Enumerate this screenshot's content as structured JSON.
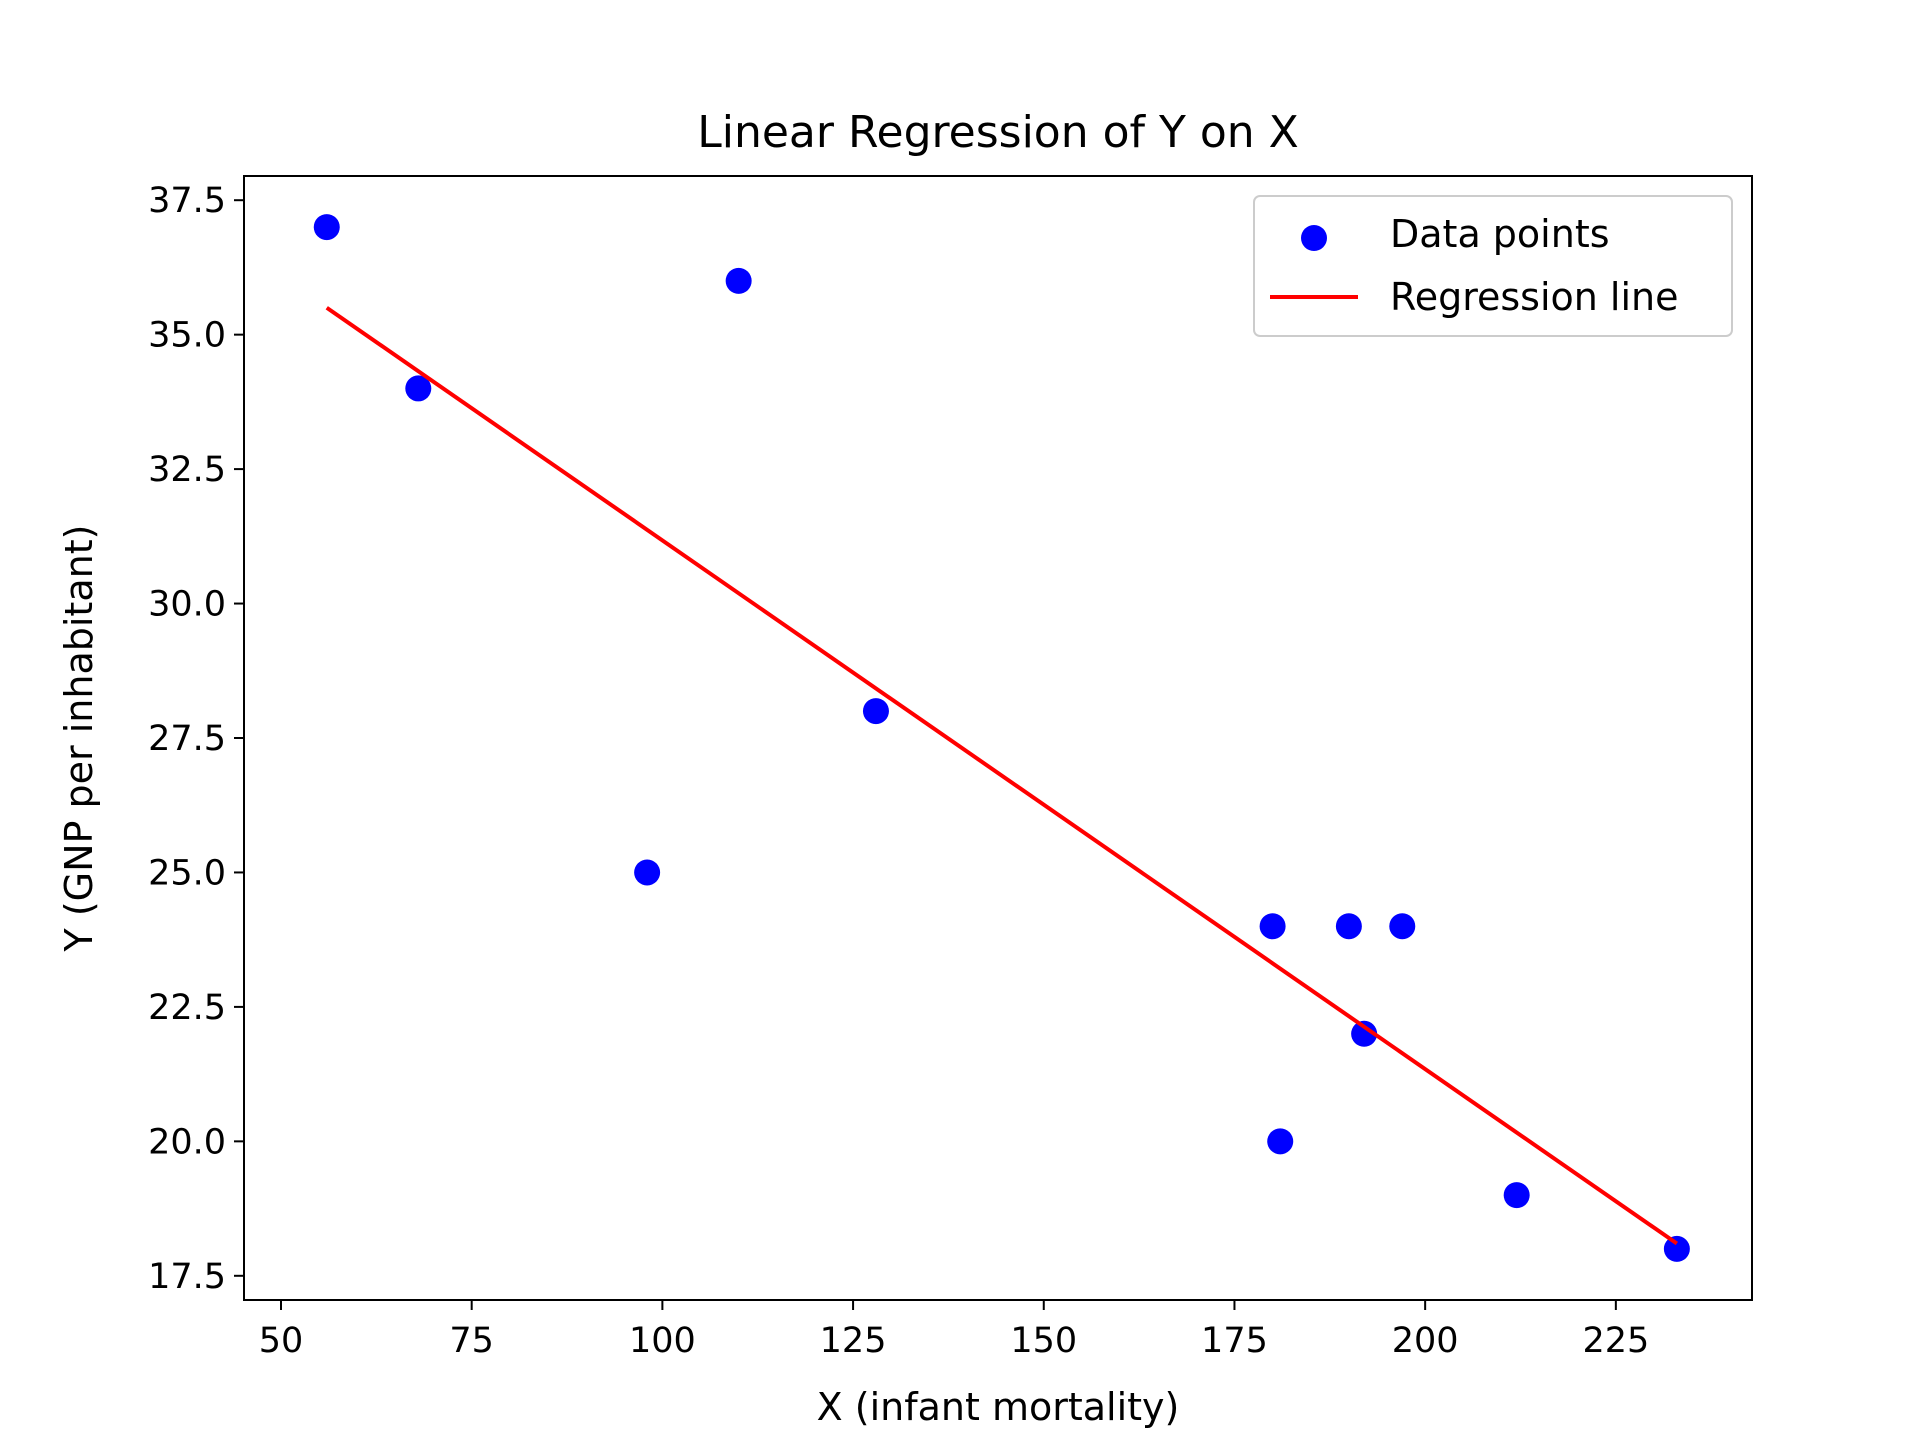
{
  "chart_data": {
    "type": "scatter",
    "title": "Linear Regression of Y on X",
    "xlabel": "X (infant mortality)",
    "ylabel": "Y (GNP per inhabitant)",
    "xlim": [
      45.15,
      242.85
    ],
    "ylim": [
      17.05,
      37.95
    ],
    "x_ticks": [
      50,
      75,
      100,
      125,
      150,
      175,
      200,
      225
    ],
    "x_tick_labels": [
      "50",
      "75",
      "100",
      "125",
      "150",
      "175",
      "200",
      "225"
    ],
    "y_ticks": [
      17.5,
      20.0,
      22.5,
      25.0,
      27.5,
      30.0,
      32.5,
      35.0,
      37.5
    ],
    "y_tick_labels": [
      "17.5",
      "20.0",
      "22.5",
      "25.0",
      "27.5",
      "30.0",
      "32.5",
      "35.0",
      "37.5"
    ],
    "grid": false,
    "legend_position": "top-right",
    "series": [
      {
        "name": "Data points",
        "kind": "scatter",
        "color": "#0000ff",
        "points": [
          {
            "x": 56,
            "y": 37
          },
          {
            "x": 68,
            "y": 34
          },
          {
            "x": 98,
            "y": 25
          },
          {
            "x": 110,
            "y": 36
          },
          {
            "x": 128,
            "y": 28
          },
          {
            "x": 180,
            "y": 24
          },
          {
            "x": 181,
            "y": 20
          },
          {
            "x": 190,
            "y": 24
          },
          {
            "x": 192,
            "y": 22
          },
          {
            "x": 197,
            "y": 24
          },
          {
            "x": 212,
            "y": 19
          },
          {
            "x": 233,
            "y": 18
          }
        ]
      },
      {
        "name": "Regression line",
        "kind": "line",
        "color": "#ff0000",
        "points": [
          {
            "x": 56,
            "y": 35.5
          },
          {
            "x": 233,
            "y": 18.1
          }
        ]
      }
    ]
  }
}
